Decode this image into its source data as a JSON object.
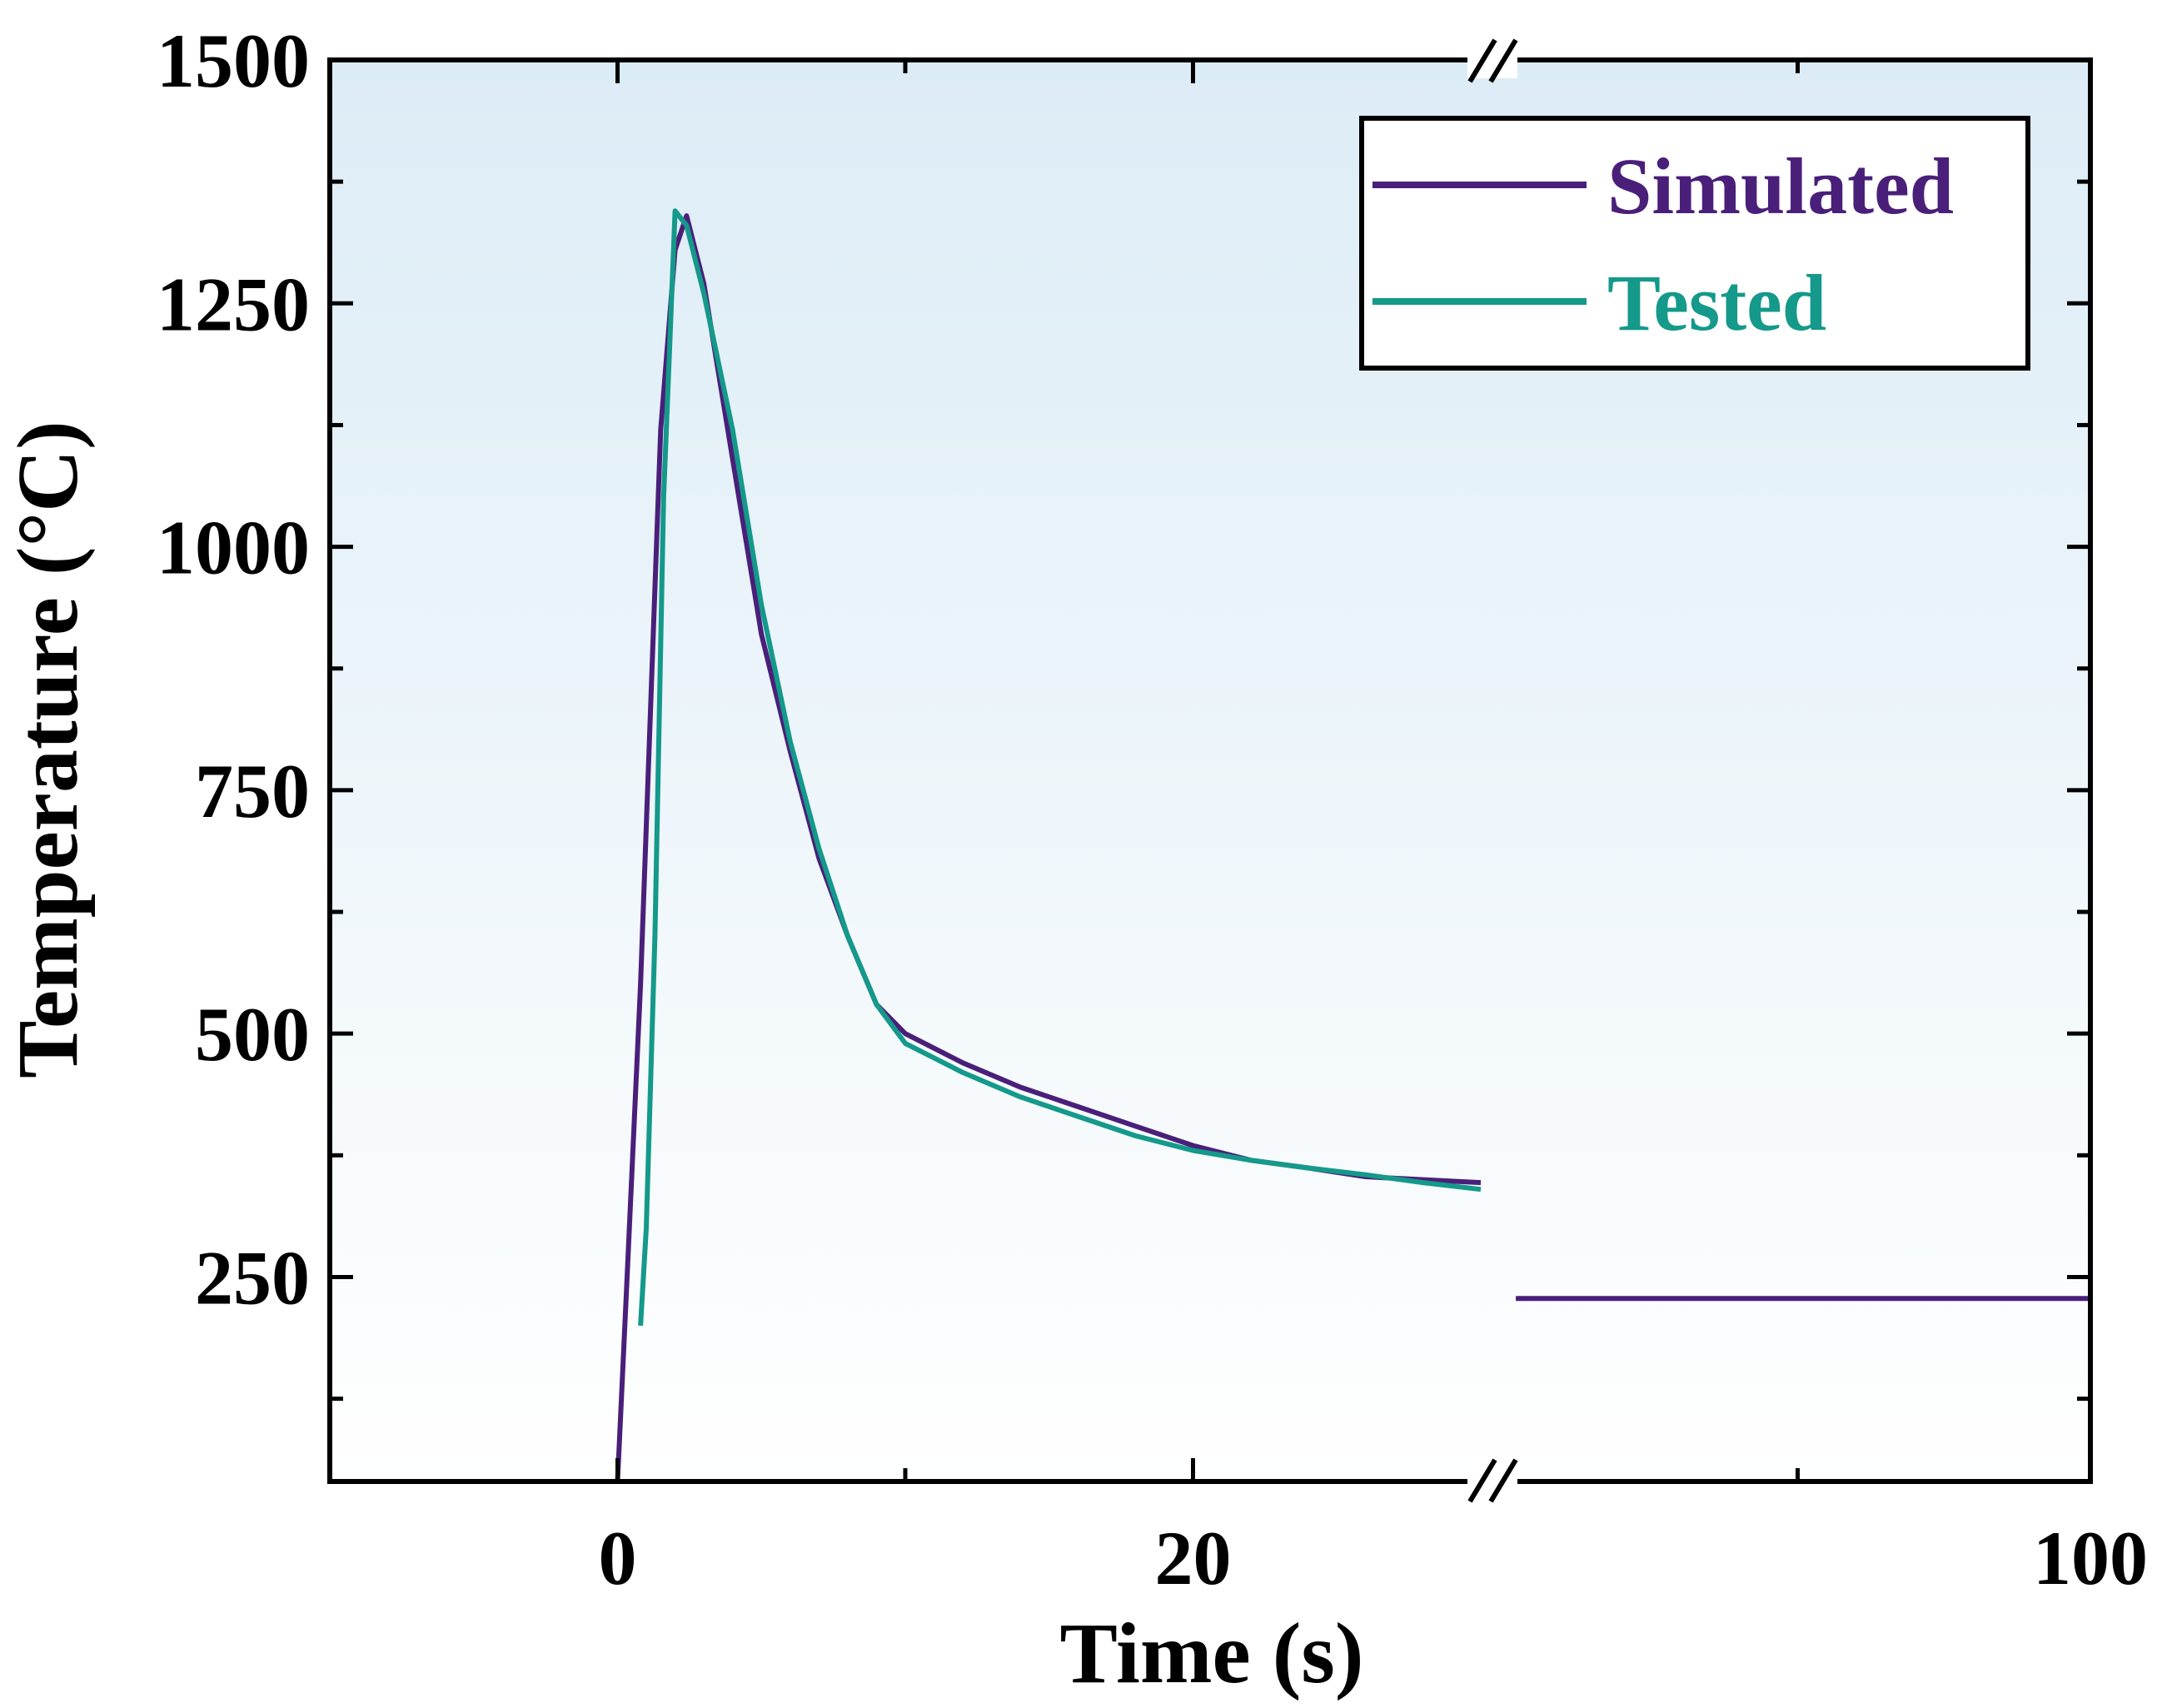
{
  "chart_data": {
    "type": "line",
    "title": "",
    "xlabel": "Time (s)",
    "ylabel": "Temperature (°C)",
    "x_axis_break": {
      "segment1_range": [
        -10,
        30
      ],
      "segment2_range": [
        30,
        100
      ]
    },
    "ylim": [
      40,
      1500
    ],
    "y_ticks": [
      250,
      500,
      750,
      1000,
      1250,
      1500
    ],
    "y_tick_labels": [
      "250",
      "500",
      "750",
      "1000",
      "1250",
      "1500"
    ],
    "x_ticks": [
      0,
      20,
      100
    ],
    "x_tick_labels": [
      "0",
      "20",
      "100"
    ],
    "background_gradient": [
      "#dcecf6",
      "#ffffff"
    ],
    "legend_position": "top-right",
    "series": [
      {
        "name": "Simulated",
        "color": "#4a1f7a",
        "x": [
          0,
          0.3,
          0.8,
          1.5,
          2.0,
          2.4,
          3.0,
          4.0,
          5.0,
          6.0,
          7.0,
          8.0,
          9.0,
          10.0,
          12.0,
          14.0,
          16.0,
          18.0,
          20.0,
          22.0,
          24.0,
          26.0,
          28.0,
          30.0
        ],
        "y": [
          40,
          230,
          550,
          1120,
          1305,
          1340,
          1270,
          1090,
          910,
          790,
          680,
          600,
          530,
          500,
          470,
          445,
          425,
          405,
          385,
          370,
          362,
          353,
          350,
          347
        ],
        "x2": [
          31.3,
          100
        ],
        "y2": [
          228,
          228
        ]
      },
      {
        "name": "Tested",
        "color": "#14998a",
        "x": [
          0.8,
          1.0,
          1.3,
          1.6,
          2.0,
          2.4,
          3.0,
          4.0,
          5.0,
          6.0,
          7.0,
          8.0,
          9.0,
          10.0,
          12.0,
          14.0,
          16.0,
          18.0,
          20.0,
          22.0,
          24.0,
          26.0,
          28.0,
          30.0
        ],
        "y": [
          200,
          300,
          600,
          1050,
          1345,
          1330,
          1260,
          1120,
          940,
          800,
          690,
          600,
          530,
          490,
          460,
          435,
          415,
          395,
          380,
          370,
          362,
          355,
          347,
          340
        ]
      }
    ]
  }
}
